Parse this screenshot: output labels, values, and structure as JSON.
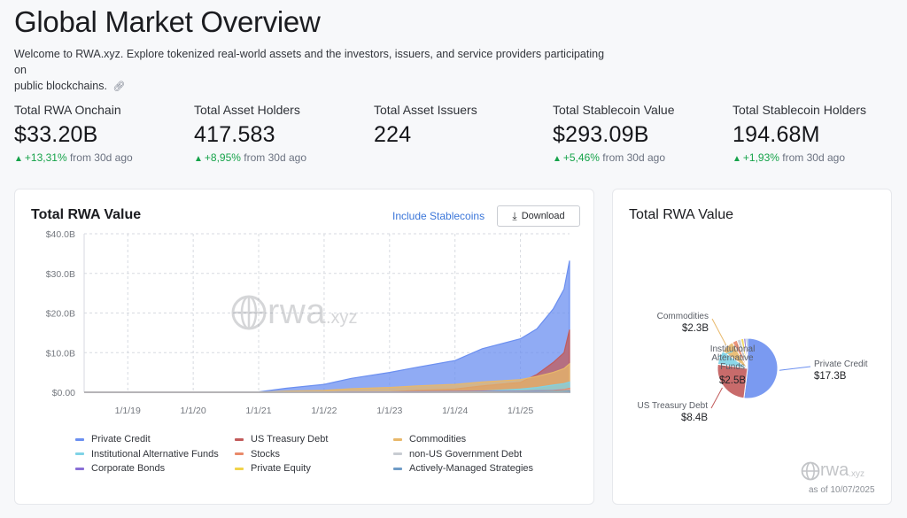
{
  "header": {
    "title": "Global Market Overview",
    "intro_line1": "Welcome to RWA.xyz. Explore tokenized real-world assets and the investors, issuers, and service providers participating on",
    "intro_line2": "public blockchains.",
    "link_icon": "link-icon"
  },
  "stats": [
    {
      "label": "Total RWA Onchain",
      "value": "$33.20B",
      "change": "+13,31%",
      "suffix": "from 30d ago"
    },
    {
      "label": "Total Asset Holders",
      "value": "417.583",
      "change": "+8,95%",
      "suffix": "from 30d ago"
    },
    {
      "label": "Total Asset Issuers",
      "value": "224"
    },
    {
      "label": "Total Stablecoin Value",
      "value": "$293.09B",
      "change": "+5,46%",
      "suffix": "from 30d ago"
    },
    {
      "label": "Total Stablecoin Holders",
      "value": "194.68M",
      "change": "+1,93%",
      "suffix": "from 30d ago"
    }
  ],
  "colors": {
    "accent": "#3b76d9",
    "positive": "#16a34a",
    "private_credit": "#6b8ff0",
    "us_treasury": "#c25b5b",
    "commodities": "#e8b86a",
    "institutional_alt": "#7fd3e6",
    "stocks": "#e98a6a",
    "non_us_gov": "#c8ccd2",
    "corporate_bonds": "#8a6fd6",
    "private_equity": "#f1d34a",
    "active_managed": "#6f9cc7"
  },
  "main_card": {
    "title": "Total RWA Value",
    "include_stablecoins": "Include Stablecoins",
    "download_label": "Download",
    "download_icon": "download-icon",
    "watermark": "rwa",
    "watermark_sub": ".xyz"
  },
  "chart_data": [
    {
      "type": "area",
      "title": "Total RWA Value",
      "xlabel": "",
      "ylabel": "",
      "y_ticks": [
        "$0.00",
        "$10.0B",
        "$20.0B",
        "$30.0B",
        "$40.0B"
      ],
      "ylim": [
        0,
        40
      ],
      "x_ticks": [
        "1/1/19",
        "1/1/20",
        "1/1/21",
        "1/1/22",
        "1/1/23",
        "1/1/24",
        "1/1/25"
      ],
      "grid": true,
      "x": [
        "2018-05",
        "2019-01",
        "2020-01",
        "2021-01",
        "2021-06",
        "2022-01",
        "2022-06",
        "2023-01",
        "2023-06",
        "2024-01",
        "2024-06",
        "2025-01",
        "2025-04",
        "2025-07",
        "2025-09",
        "2025-10"
      ],
      "series": [
        {
          "name": "Private Credit",
          "values": [
            0,
            0,
            0,
            0.1,
            1.0,
            2.0,
            3.5,
            5.0,
            6.3,
            8.0,
            11.0,
            13.5,
            16.0,
            21.0,
            26.0,
            33.2
          ]
        },
        {
          "name": "US Treasury Debt",
          "values": [
            0,
            0,
            0,
            0,
            0,
            0,
            0.05,
            0.1,
            0.5,
            0.8,
            1.6,
            2.5,
            4.5,
            7.5,
            10.0,
            15.8
          ]
        },
        {
          "name": "Commodities",
          "values": [
            0,
            0,
            0,
            0,
            0.3,
            0.5,
            0.9,
            1.2,
            1.6,
            2.0,
            2.6,
            3.2,
            4.0,
            5.0,
            6.0,
            7.2
          ]
        },
        {
          "name": "Institutional Alternative Funds",
          "values": [
            0,
            0,
            0,
            0,
            0,
            0,
            0,
            0,
            0,
            0.1,
            0.3,
            0.8,
            1.2,
            1.8,
            2.2,
            2.6
          ]
        },
        {
          "name": "Stocks",
          "values": [
            0,
            0,
            0,
            0,
            0,
            0,
            0,
            0,
            0,
            0.05,
            0.1,
            0.2,
            0.3,
            0.5,
            0.7,
            1.0
          ]
        },
        {
          "name": "non-US Government Debt",
          "values": [
            0,
            0,
            0,
            0,
            0,
            0,
            0,
            0,
            0,
            0.05,
            0.1,
            0.2,
            0.3,
            0.4,
            0.5,
            0.6
          ]
        },
        {
          "name": "Corporate Bonds",
          "values": [
            0,
            0,
            0,
            0,
            0,
            0.05,
            0.1,
            0.1,
            0.15,
            0.2,
            0.25,
            0.3,
            0.35,
            0.4,
            0.45,
            0.5
          ]
        },
        {
          "name": "Private Equity",
          "values": [
            0,
            0,
            0,
            0,
            0,
            0,
            0,
            0,
            0,
            0.05,
            0.1,
            0.15,
            0.2,
            0.3,
            0.35,
            0.4
          ]
        },
        {
          "name": "Actively-Managed Strategies",
          "values": [
            0,
            0,
            0,
            0,
            0,
            0,
            0,
            0,
            0,
            0,
            0.05,
            0.1,
            0.15,
            0.2,
            0.25,
            0.3
          ]
        }
      ],
      "legend": [
        "Private Credit",
        "US Treasury Debt",
        "Commodities",
        "Institutional Alternative Funds",
        "Stocks",
        "non-US Government Debt",
        "Corporate Bonds",
        "Private Equity",
        "Actively-Managed Strategies"
      ],
      "legend_placement": "bottom"
    },
    {
      "type": "pie",
      "title": "Total RWA Value",
      "slices": [
        {
          "name": "Private Credit",
          "label": "Private Credit",
          "value_label": "$17.3B",
          "value": 17.3
        },
        {
          "name": "US Treasury Debt",
          "label": "US Treasury Debt",
          "value_label": "$8.4B",
          "value": 8.4
        },
        {
          "name": "Institutional Alternative Funds",
          "label": "Institutional Alternative Funds",
          "value_label": "$2.5B",
          "value": 2.5
        },
        {
          "name": "Commodities",
          "label": "Commodities",
          "value_label": "$2.3B",
          "value": 2.3
        },
        {
          "name": "Stocks",
          "value": 0.9
        },
        {
          "name": "non-US Government Debt",
          "value": 0.7
        },
        {
          "name": "Private Equity",
          "value": 0.5
        },
        {
          "name": "Corporate Bonds",
          "value": 0.4
        },
        {
          "name": "Actively-Managed Strategies",
          "value": 0.3
        }
      ]
    }
  ],
  "side_card": {
    "title": "Total RWA Value",
    "logo": "rwa",
    "logo_sub": ".xyz",
    "as_of": "as of 10/07/2025"
  }
}
